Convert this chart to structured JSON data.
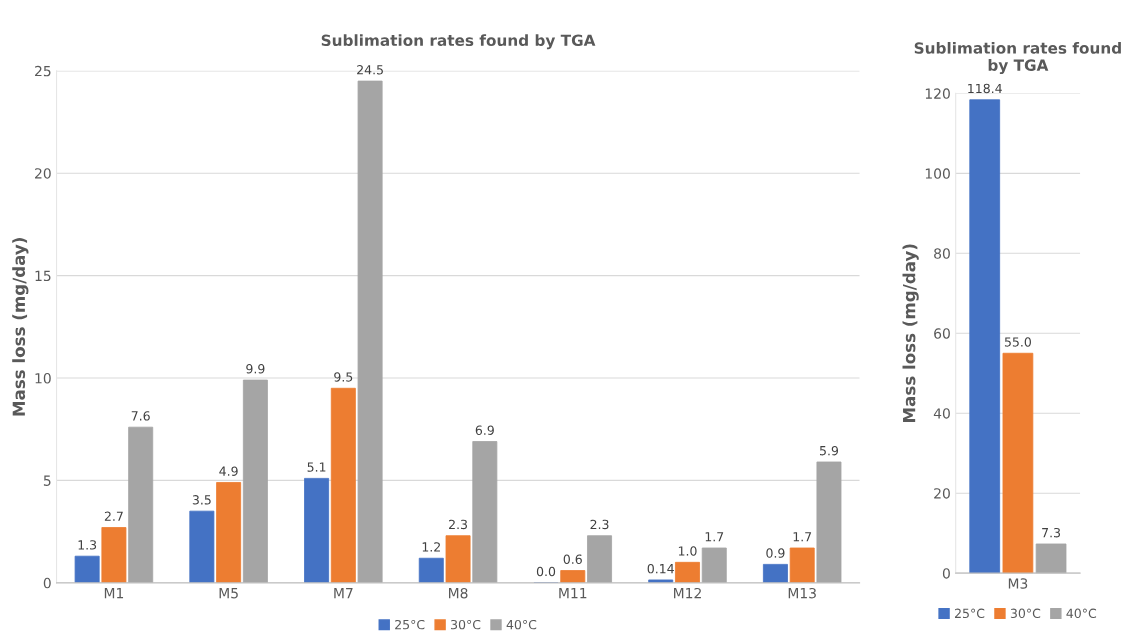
{
  "chart_data": [
    {
      "type": "bar",
      "title": "Sublimation rates found by TGA",
      "ylabel": "Mass loss (mg/day)",
      "categories": [
        "M1",
        "M5",
        "M7",
        "M8",
        "M11",
        "M12",
        "M13"
      ],
      "series": [
        {
          "name": "25°C",
          "color": "#4472c4",
          "values": [
            1.3,
            3.5,
            5.1,
            1.2,
            0.0,
            0.14,
            0.9
          ],
          "value_labels": [
            "1.3",
            "3.5",
            "5.1",
            "1.2",
            "0.0",
            "0.14",
            "0.9"
          ]
        },
        {
          "name": "30°C",
          "color": "#ed7d31",
          "values": [
            2.7,
            4.9,
            9.5,
            2.3,
            0.6,
            1.0,
            1.7
          ],
          "value_labels": [
            "2.7",
            "4.9",
            "9.5",
            "2.3",
            "0.6",
            "1.0",
            "1.7"
          ]
        },
        {
          "name": "40°C",
          "color": "#a5a5a5",
          "values": [
            7.6,
            9.9,
            24.5,
            6.9,
            2.3,
            1.7,
            5.9
          ],
          "value_labels": [
            "7.6",
            "9.9",
            "24.5",
            "6.9",
            "2.3",
            "1.7",
            "5.9"
          ]
        }
      ],
      "ylim": [
        0,
        25
      ],
      "yticks": [
        0,
        5,
        10,
        15,
        20,
        25
      ],
      "grid": "y",
      "legend": "bottom"
    },
    {
      "type": "bar",
      "title": "Sublimation rates found by TGA",
      "ylabel": "Mass loss (mg/day)",
      "categories": [
        "M3"
      ],
      "series": [
        {
          "name": "25°C",
          "color": "#4472c4",
          "values": [
            118.4
          ],
          "value_labels": [
            "118.4"
          ]
        },
        {
          "name": "30°C",
          "color": "#ed7d31",
          "values": [
            55.0
          ],
          "value_labels": [
            "55.0"
          ]
        },
        {
          "name": "40°C",
          "color": "#a5a5a5",
          "values": [
            7.3
          ],
          "value_labels": [
            "7.3"
          ]
        }
      ],
      "ylim": [
        0,
        120
      ],
      "yticks": [
        0,
        20,
        40,
        60,
        80,
        100,
        120
      ],
      "grid": "y",
      "legend": "bottom"
    }
  ]
}
